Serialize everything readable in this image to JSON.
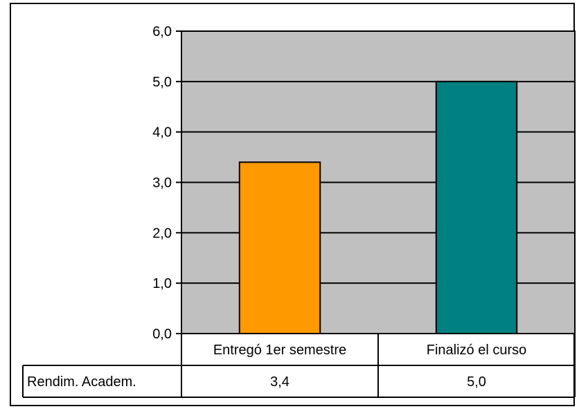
{
  "chart_data": {
    "type": "bar",
    "categories": [
      "Entregó 1er semestre",
      "Finalizó el curso"
    ],
    "series": [
      {
        "name": "Rendim. Academ.",
        "values": [
          3.4,
          5.0
        ],
        "labels": [
          "3,4",
          "5,0"
        ]
      }
    ],
    "bar_colors": [
      "#FF9900",
      "#008080"
    ],
    "plot_background": "#C0C0C0",
    "ylim": [
      0,
      6
    ],
    "yticks": [
      0,
      1,
      2,
      3,
      4,
      5,
      6
    ],
    "ytick_labels": [
      "0,0",
      "1,0",
      "2,0",
      "3,0",
      "4,0",
      "5,0",
      "6,0"
    ],
    "grid": true,
    "data_table": true,
    "title": "",
    "xlabel": "",
    "ylabel": ""
  }
}
